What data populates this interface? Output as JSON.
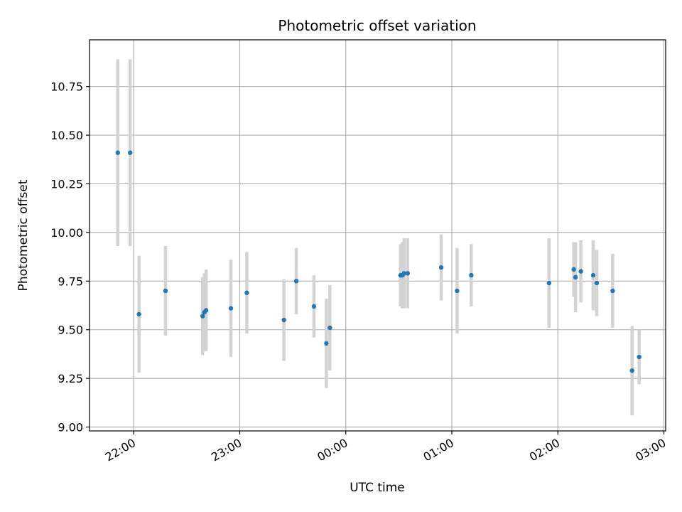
{
  "chart_data": {
    "type": "scatter",
    "title": "Photometric offset variation",
    "xlabel": "UTC time",
    "ylabel": "Photometric offset",
    "xlim": [
      "21:35",
      "03:01"
    ],
    "ylim": [
      8.98,
      10.99
    ],
    "grid": true,
    "colors": {
      "point": "#1f77b4",
      "errorbar": "#d3d3d3",
      "grid": "#b0b0b0",
      "axis": "#000000"
    },
    "x_ticks": [
      "22:00",
      "23:00",
      "00:00",
      "01:00",
      "02:00",
      "03:00"
    ],
    "y_ticks": [
      "9.00",
      "9.25",
      "9.50",
      "9.75",
      "10.00",
      "10.25",
      "10.50",
      "10.75"
    ],
    "points": [
      {
        "t": "21:51",
        "y": 10.41,
        "yerr": 0.48
      },
      {
        "t": "21:58",
        "y": 10.41,
        "yerr": 0.48
      },
      {
        "t": "22:03",
        "y": 9.58,
        "yerr": 0.3
      },
      {
        "t": "22:18",
        "y": 9.7,
        "yerr": 0.23
      },
      {
        "t": "22:39",
        "y": 9.57,
        "yerr": 0.2
      },
      {
        "t": "22:40",
        "y": 9.59,
        "yerr": 0.2
      },
      {
        "t": "22:41",
        "y": 9.6,
        "yerr": 0.21
      },
      {
        "t": "22:55",
        "y": 9.61,
        "yerr": 0.25
      },
      {
        "t": "23:04",
        "y": 9.69,
        "yerr": 0.21
      },
      {
        "t": "23:25",
        "y": 9.55,
        "yerr": 0.21
      },
      {
        "t": "23:32",
        "y": 9.75,
        "yerr": 0.17
      },
      {
        "t": "23:42",
        "y": 9.62,
        "yerr": 0.16
      },
      {
        "t": "23:49",
        "y": 9.43,
        "yerr": 0.23
      },
      {
        "t": "23:51",
        "y": 9.51,
        "yerr": 0.22
      },
      {
        "t": "00:31",
        "y": 9.78,
        "yerr": 0.16
      },
      {
        "t": "00:32",
        "y": 9.78,
        "yerr": 0.17
      },
      {
        "t": "00:33",
        "y": 9.79,
        "yerr": 0.18
      },
      {
        "t": "00:35",
        "y": 9.79,
        "yerr": 0.18
      },
      {
        "t": "00:54",
        "y": 9.82,
        "yerr": 0.17
      },
      {
        "t": "01:03",
        "y": 9.7,
        "yerr": 0.22
      },
      {
        "t": "01:11",
        "y": 9.78,
        "yerr": 0.16
      },
      {
        "t": "01:55",
        "y": 9.74,
        "yerr": 0.23
      },
      {
        "t": "02:09",
        "y": 9.81,
        "yerr": 0.14
      },
      {
        "t": "02:10",
        "y": 9.77,
        "yerr": 0.18
      },
      {
        "t": "02:13",
        "y": 9.8,
        "yerr": 0.16
      },
      {
        "t": "02:20",
        "y": 9.78,
        "yerr": 0.18
      },
      {
        "t": "02:22",
        "y": 9.74,
        "yerr": 0.17
      },
      {
        "t": "02:31",
        "y": 9.7,
        "yerr": 0.19
      },
      {
        "t": "02:42",
        "y": 9.29,
        "yerr": 0.23
      },
      {
        "t": "02:46",
        "y": 9.36,
        "yerr": 0.14
      }
    ]
  }
}
